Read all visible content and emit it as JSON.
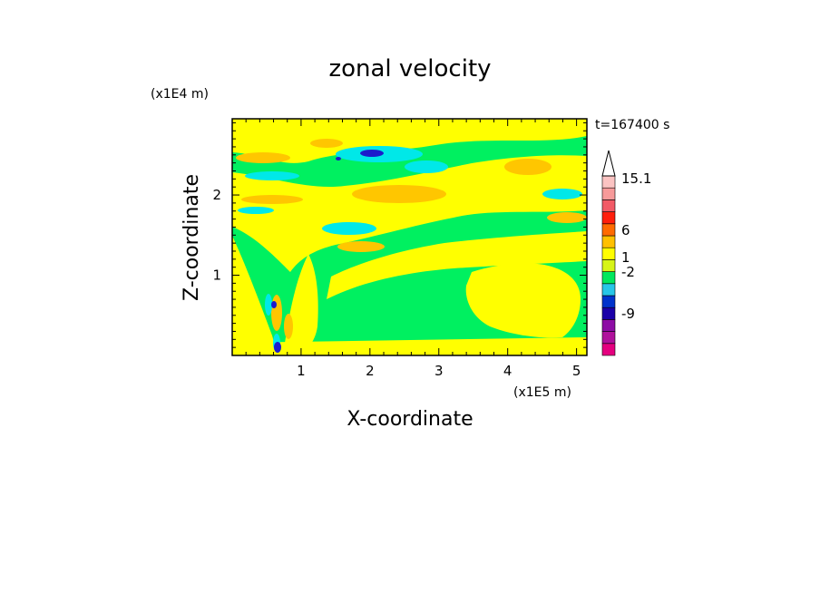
{
  "chart_data": {
    "type": "heatmap",
    "title": "zonal velocity",
    "xlabel": "X-coordinate",
    "ylabel": "Z-coordinate",
    "x_unit": "(x1E5 m)",
    "y_unit": "(x1E4 m)",
    "time_label": "t=167400 s",
    "xlim": [
      0,
      5.15
    ],
    "ylim": [
      0,
      2.95
    ],
    "x_ticks": [
      "1",
      "2",
      "3",
      "4",
      "5"
    ],
    "y_ticks": [
      "1",
      "2"
    ],
    "x_tick_values": [
      1,
      2,
      3,
      4,
      5
    ],
    "y_tick_values": [
      1,
      2
    ],
    "colorbar": {
      "labels": [
        "15.1",
        "6",
        "1",
        "-2",
        "-9"
      ],
      "colors": [
        "#e5007f",
        "#b0119c",
        "#8d0ca5",
        "#1b00a8",
        "#0033cc",
        "#27c6e7",
        "#00e85d",
        "#d7f417",
        "#fffd00",
        "#ffc000",
        "#ff6a00",
        "#ff1e0c",
        "#f25a66",
        "#f79a9a",
        "#fbc3c2"
      ]
    },
    "fields": {
      "green": "#00f060",
      "yellow": "#ffff00",
      "orange": "#ffc600",
      "cyan": "#00e8e8",
      "blue": "#1c1ccc"
    }
  }
}
